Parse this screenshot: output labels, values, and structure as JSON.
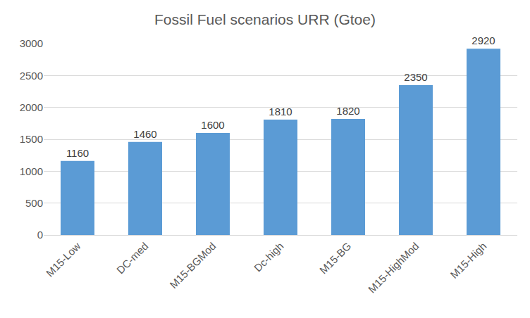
{
  "chart_data": {
    "type": "bar",
    "title": "Fossil Fuel scenarios URR (Gtoe)",
    "categories": [
      "M15-Low",
      "DC-med",
      "M15-BGMod",
      "Dc-high",
      "M15-BG",
      "M15-HighMod",
      "M15-High"
    ],
    "values": [
      1160,
      1460,
      1600,
      1810,
      1820,
      2350,
      2920
    ],
    "color": "#5b9bd5",
    "ylim": [
      0,
      3000
    ],
    "yticks": [
      0,
      500,
      1000,
      1500,
      2000,
      2500,
      3000
    ],
    "grid": true,
    "data_labels": true
  }
}
